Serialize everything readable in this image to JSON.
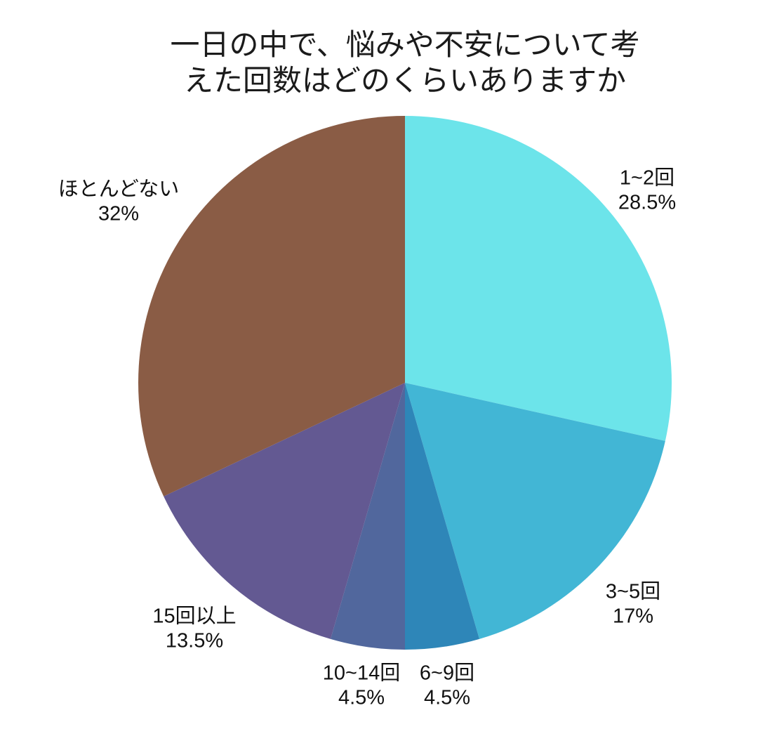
{
  "page": {
    "background": "#ffffff"
  },
  "chart_data": {
    "type": "pie",
    "title": "一日の中で、悩みや不安について考えた回数はどのくらいありますか",
    "title_lines": [
      "一日の中で、悩みや不安について考",
      "えた回数はどのくらいありますか"
    ],
    "start_angle_deg": -90,
    "direction": "clockwise",
    "total": 100,
    "legend_position": "none",
    "slices": [
      {
        "label": "1~2回",
        "value": 28.5,
        "pct_label": "28.5%",
        "color": "#6CE4EA"
      },
      {
        "label": "3~5回",
        "value": 17,
        "pct_label": "17%",
        "color": "#42B6D5"
      },
      {
        "label": "6~9回",
        "value": 4.5,
        "pct_label": "4.5%",
        "color": "#2E86B8"
      },
      {
        "label": "10~14回",
        "value": 4.5,
        "pct_label": "4.5%",
        "color": "#51679D"
      },
      {
        "label": "15回以上",
        "value": 13.5,
        "pct_label": "13.5%",
        "color": "#635992"
      },
      {
        "label": "ほとんどない",
        "value": 32,
        "pct_label": "32%",
        "color": "#8A5C45"
      }
    ]
  }
}
